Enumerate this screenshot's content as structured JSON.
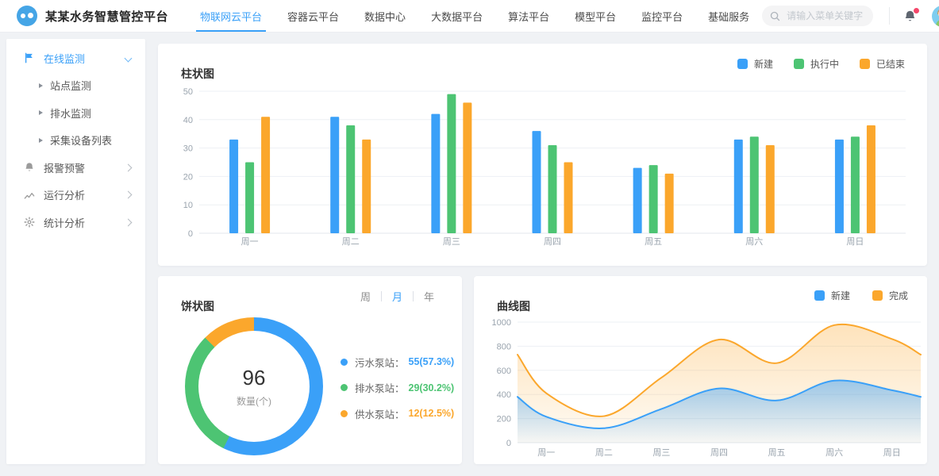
{
  "header": {
    "logo_title": "某某水务智慧管控平台",
    "tabs": [
      {
        "label": "物联网云平台",
        "active": true
      },
      {
        "label": "容器云平台",
        "active": false
      },
      {
        "label": "数据中心",
        "active": false
      },
      {
        "label": "大数据平台",
        "active": false
      },
      {
        "label": "算法平台",
        "active": false
      },
      {
        "label": "模型平台",
        "active": false
      },
      {
        "label": "监控平台",
        "active": false
      },
      {
        "label": "基础服务",
        "active": false
      }
    ],
    "search_placeholder": "请输入菜单关键字",
    "has_notification_dot": true
  },
  "sidebar": {
    "items": [
      {
        "label": "在线监测",
        "icon": "flag-icon",
        "active": true,
        "expanded": true,
        "children": [
          {
            "label": "站点监测"
          },
          {
            "label": "排水监测"
          },
          {
            "label": "采集设备列表"
          }
        ]
      },
      {
        "label": "报警预警",
        "icon": "bell-icon",
        "active": false,
        "expanded": false,
        "children": []
      },
      {
        "label": "运行分析",
        "icon": "trend-icon",
        "active": false,
        "expanded": false,
        "children": []
      },
      {
        "label": "统计分析",
        "icon": "gear-icon",
        "active": false,
        "expanded": false,
        "children": []
      }
    ]
  },
  "cards": {
    "bar": {
      "title": "柱状图"
    },
    "pie": {
      "title": "饼状图",
      "toggle": [
        {
          "label": "周",
          "active": false
        },
        {
          "label": "月",
          "active": true
        },
        {
          "label": "年",
          "active": false
        }
      ],
      "center_value": "96",
      "center_label": "数量(个)",
      "legend": [
        {
          "label": "污水泵站：",
          "value": "55(57.3%)",
          "color": "#3AA0F8"
        },
        {
          "label": "排水泵站：",
          "value": "29(30.2%)",
          "color": "#4DC473"
        },
        {
          "label": "供水泵站：",
          "value": "12(12.5%)",
          "color": "#FBA72C"
        }
      ]
    },
    "line": {
      "title": "曲线图"
    }
  },
  "colors": {
    "primary": "#3AA0F8",
    "green": "#4DC473",
    "orange": "#FBA72C",
    "badge": "#F5476A",
    "page_bg": "#F0F2F5",
    "axis_text": "#9AA4AE",
    "grid": "#EDF0F4"
  },
  "chart_data": [
    {
      "type": "bar",
      "title": "柱状图",
      "categories": [
        "周一",
        "周二",
        "周三",
        "周四",
        "周五",
        "周六",
        "周日"
      ],
      "series": [
        {
          "name": "新建",
          "color": "#3AA0F8",
          "values": [
            33,
            41,
            42,
            36,
            23,
            33,
            33
          ]
        },
        {
          "name": "执行中",
          "color": "#4DC473",
          "values": [
            25,
            38,
            49,
            31,
            24,
            34,
            34
          ]
        },
        {
          "name": "已结束",
          "color": "#FBA72C",
          "values": [
            41,
            33,
            46,
            25,
            21,
            31,
            38
          ]
        }
      ],
      "ylim": [
        0,
        50
      ],
      "yticks": [
        0,
        10,
        20,
        30,
        40,
        50
      ],
      "grid": true,
      "legend_position": "top-right"
    },
    {
      "type": "pie",
      "title": "饼状图",
      "donut": true,
      "total": 96,
      "total_label": "数量(个)",
      "start_angle_deg": 0,
      "clockwise": true,
      "slices": [
        {
          "name": "污水泵站",
          "value": 55,
          "percent": 57.3,
          "color": "#3AA0F8"
        },
        {
          "name": "排水泵站",
          "value": 29,
          "percent": 30.2,
          "color": "#4DC473"
        },
        {
          "name": "供水泵站",
          "value": 12,
          "percent": 12.5,
          "color": "#FBA72C"
        }
      ]
    },
    {
      "type": "area",
      "title": "曲线图",
      "categories": [
        "周一",
        "周二",
        "周三",
        "周四",
        "周五",
        "周六",
        "周日"
      ],
      "point_layout": "9 points per series: left chart edge, one per weekday label, right chart edge",
      "series": [
        {
          "name": "新建",
          "color": "#3AA0F8",
          "values": [
            380,
            215,
            120,
            280,
            450,
            350,
            515,
            435,
            380
          ]
        },
        {
          "name": "完成",
          "color": "#FBA72C",
          "values": [
            730,
            410,
            220,
            540,
            855,
            660,
            975,
            860,
            730
          ]
        }
      ],
      "ylim": [
        0,
        1000
      ],
      "yticks": [
        0,
        200,
        400,
        600,
        800,
        1000
      ],
      "smooth": true,
      "grid": true,
      "legend_position": "top-right"
    }
  ]
}
